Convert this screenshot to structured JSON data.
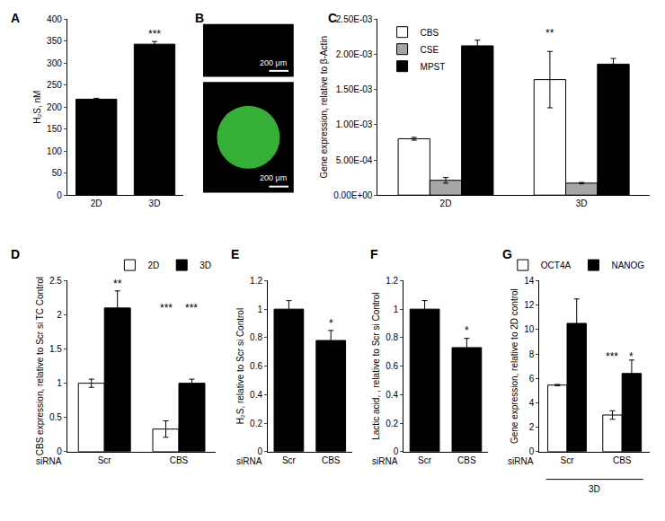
{
  "chart_data": [
    {
      "label": "A",
      "type": "bar",
      "categories": [
        "2D",
        "3D"
      ],
      "values": [
        218,
        343
      ],
      "errors": [
        2,
        6
      ],
      "color": "#000000",
      "ylabel": "H₂S, nM",
      "ylim": [
        0,
        400
      ],
      "yticks": [
        0,
        50,
        100,
        150,
        200,
        250,
        300,
        350,
        400
      ],
      "annotations": [
        {
          "text": "***",
          "category": "3D",
          "y": 365
        }
      ]
    },
    {
      "label": "B",
      "type": "image",
      "images": [
        {
          "scale_bar": "200 μm",
          "color": "#000000"
        },
        {
          "scale_bar": "200 μm",
          "color": "#000000",
          "marker": "circle"
        }
      ]
    },
    {
      "label": "C",
      "type": "bar",
      "categories": [
        "2D",
        "3D"
      ],
      "series": [
        {
          "name": "CBS",
          "color": "#ffffff",
          "values": [
            0.0008,
            0.00164
          ],
          "errors": [
            2e-05,
            0.0004
          ]
        },
        {
          "name": "CSE",
          "color": "#a6a6a6",
          "values": [
            0.00021,
            0.00017
          ],
          "errors": [
            4e-05,
            1e-05
          ]
        },
        {
          "name": "MPST",
          "color": "#000000",
          "values": [
            0.00212,
            0.00186
          ],
          "errors": [
            8e-05,
            8e-05
          ]
        }
      ],
      "ylabel": "Gene expression, relative to β-Actin",
      "ylim": [
        0,
        0.0025
      ],
      "yticks": [
        {
          "value": 0,
          "label": "0.00E+00"
        },
        {
          "value": 0.0005,
          "label": "5.00E-04"
        },
        {
          "value": 0.001,
          "label": "1.00E-03"
        },
        {
          "value": 0.0015,
          "label": "1.50E-03"
        },
        {
          "value": 0.002,
          "label": "2.00E-03"
        },
        {
          "value": 0.0025,
          "label": "2.50E-03"
        }
      ],
      "legend": "top-left",
      "annotations": [
        {
          "text": "**",
          "category": "3D",
          "series": "CBS",
          "y": 0.0023
        }
      ]
    },
    {
      "label": "D",
      "type": "bar",
      "categories": [
        "Scr",
        "CBS"
      ],
      "xlabel": "siRNA",
      "series": [
        {
          "name": "2D",
          "color": "#ffffff",
          "values": [
            1.0,
            0.33
          ],
          "errors": [
            0.06,
            0.12
          ]
        },
        {
          "name": "3D",
          "color": "#000000",
          "values": [
            2.1,
            1.0
          ],
          "errors": [
            0.25,
            0.06
          ]
        }
      ],
      "ylabel": "CBS expression, relative to Scr si TC Control",
      "ylim": [
        0,
        2.5
      ],
      "yticks": [
        0,
        0.5,
        1,
        1.5,
        2,
        2.5
      ],
      "legend": "top",
      "annotations": [
        {
          "text": "**",
          "category": "Scr",
          "series": "3D",
          "y": 2.45
        },
        {
          "text": "***",
          "category": "CBS",
          "series": "2D",
          "y": 2.1
        },
        {
          "text": "***",
          "category": "CBS",
          "series": "3D",
          "y": 2.1
        }
      ]
    },
    {
      "label": "E",
      "type": "bar",
      "categories": [
        "Scr",
        "CBS"
      ],
      "xlabel": "siRNA",
      "values": [
        1.0,
        0.78
      ],
      "errors": [
        0.06,
        0.07
      ],
      "color": "#000000",
      "ylabel": "H₂S, relative to Scr si Control",
      "ylim": [
        0,
        1.2
      ],
      "yticks": [
        0,
        0.2,
        0.4,
        0.6,
        0.8,
        1,
        1.2
      ],
      "annotations": [
        {
          "text": "*",
          "category": "CBS",
          "y": 0.9
        }
      ]
    },
    {
      "label": "F",
      "type": "bar",
      "categories": [
        "Scr",
        "CBS"
      ],
      "xlabel": "siRNA",
      "values": [
        1.0,
        0.73
      ],
      "errors": [
        0.06,
        0.065
      ],
      "color": "#000000",
      "ylabel": "Lactic acid, , relative to Scr si Control",
      "ylim": [
        0,
        1.2
      ],
      "yticks": [
        0,
        0.2,
        0.4,
        0.6,
        0.8,
        1,
        1.2
      ],
      "annotations": [
        {
          "text": "*",
          "category": "CBS",
          "y": 0.85
        }
      ]
    },
    {
      "label": "G",
      "type": "bar",
      "categories": [
        "Scr",
        "CBS"
      ],
      "xlabel": "siRNA",
      "group_label": "3D",
      "series": [
        {
          "name": "OCT4A",
          "color": "#ffffff",
          "values": [
            5.45,
            3.0
          ],
          "errors": [
            0.05,
            0.35
          ]
        },
        {
          "name": "NANOG",
          "color": "#000000",
          "values": [
            10.5,
            6.4
          ],
          "errors": [
            2.0,
            1.1
          ]
        }
      ],
      "ylabel": "Gene expression, relative to 2D control",
      "ylim": [
        0,
        14
      ],
      "yticks": [
        0,
        2,
        4,
        6,
        8,
        10,
        12,
        14
      ],
      "legend": "top",
      "annotations": [
        {
          "text": "***",
          "category": "CBS",
          "series": "OCT4A",
          "y": 7.8
        },
        {
          "text": "*",
          "category": "CBS",
          "series": "NANOG",
          "y": 7.8
        }
      ]
    }
  ]
}
